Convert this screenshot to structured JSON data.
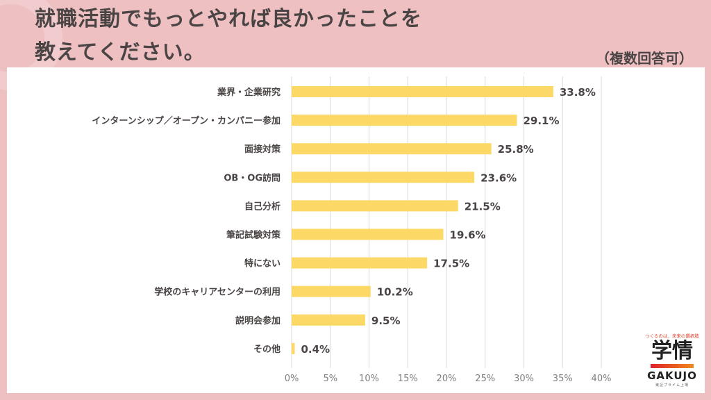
{
  "header": {
    "title_line1": "就職活動でもっとやれば良かったことを",
    "title_line2": "教えてください。",
    "note": "（複数回答可）"
  },
  "logo": {
    "tagline": "つくるのは、未来の選択肢",
    "name_jp": "学情",
    "name_en": "GAKUJO",
    "sub": "東証プライム上場"
  },
  "colors": {
    "background": "#eec0c2",
    "bar": "#fcd866",
    "grid": "#d9d9d9",
    "text": "#4a4444"
  },
  "chart_data": {
    "type": "bar",
    "orientation": "horizontal",
    "title": "就職活動でもっとやれば良かったことを教えてください。",
    "subtitle": "（複数回答可）",
    "categories": [
      "業界・企業研究",
      "インターンシップ／オープン・カンパニー参加",
      "面接対策",
      "OB・OG訪問",
      "自己分析",
      "筆記試験対策",
      "特にない",
      "学校のキャリアセンターの利用",
      "説明会参加",
      "その他"
    ],
    "values": [
      33.8,
      29.1,
      25.8,
      23.6,
      21.5,
      19.6,
      17.5,
      10.2,
      9.5,
      0.4
    ],
    "value_labels": [
      "33.8%",
      "29.1%",
      "25.8%",
      "23.6%",
      "21.5%",
      "19.6%",
      "17.5%",
      "10.2%",
      "9.5%",
      "0.4%"
    ],
    "xlim": [
      0,
      40
    ],
    "xticks": [
      0,
      5,
      10,
      15,
      20,
      25,
      30,
      35,
      40
    ],
    "xtick_labels": [
      "0%",
      "5%",
      "10%",
      "15%",
      "20%",
      "25%",
      "30%",
      "35%",
      "40%"
    ],
    "xlabel": "",
    "ylabel": "",
    "grid": true,
    "legend": "none"
  }
}
